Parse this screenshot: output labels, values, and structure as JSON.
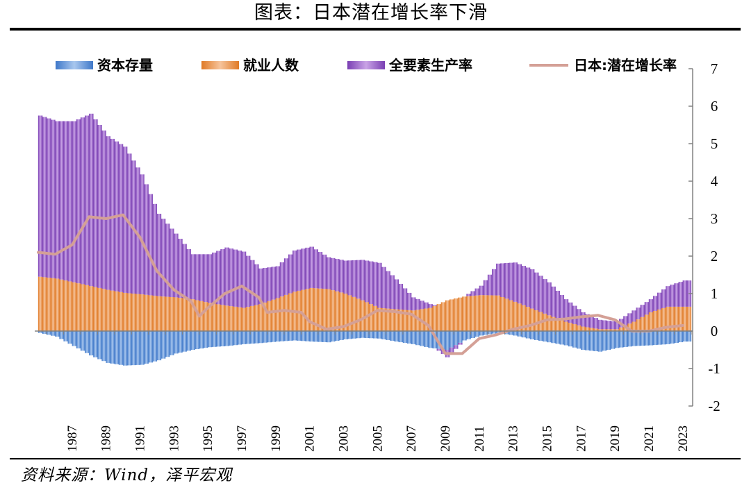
{
  "header": {
    "title": "图表：日本潜在增长率下滑"
  },
  "footer": {
    "source": "资料来源：Wind，泽平宏观"
  },
  "colors": {
    "capital": "#5b8fd6",
    "labor": "#ed8a3c",
    "tfp": "#9b5fc9",
    "potential": "#d4a096",
    "axis": "#808080"
  },
  "chart_data": {
    "type": "bar",
    "stacked": true,
    "title": "图表：日本潜在增长率下滑",
    "xlabel": "",
    "ylabel": "",
    "ylim": [
      -2,
      7
    ],
    "yticks": [
      "7",
      "6",
      "5",
      "4",
      "3",
      "2",
      "1",
      "0",
      "-1",
      "-2"
    ],
    "y_axis_side": "right",
    "legend_position": "top",
    "x": [
      1985,
      1986,
      1987,
      1988,
      1989,
      1990,
      1991,
      1992,
      1993,
      1994,
      1995,
      1996,
      1997,
      1998,
      1999,
      2000,
      2001,
      2002,
      2003,
      2004,
      2005,
      2006,
      2007,
      2008,
      2009,
      2010,
      2011,
      2012,
      2013,
      2014,
      2015,
      2016,
      2017,
      2018,
      2019,
      2020,
      2021,
      2022,
      2023
    ],
    "quarters_per_year": 4,
    "start_quarter": 3,
    "x_tick_labels": [
      "1987",
      "1989",
      "1991",
      "1993",
      "1995",
      "1997",
      "1999",
      "2001",
      "2003",
      "2005",
      "2007",
      "2009",
      "2011",
      "2013",
      "2015",
      "2017",
      "2019",
      "2021",
      "2023"
    ],
    "x_tick_years": [
      1987,
      1989,
      1991,
      1993,
      1995,
      1997,
      1999,
      2001,
      2003,
      2005,
      2007,
      2009,
      2011,
      2013,
      2015,
      2017,
      2019,
      2021,
      2023
    ],
    "series": [
      {
        "name": "资本存量",
        "kind": "bar",
        "color": "#5b8fd6",
        "anchors": [
          [
            1985.5,
            -0.05
          ],
          [
            1986.5,
            -0.15
          ],
          [
            1987.5,
            -0.4
          ],
          [
            1988.5,
            -0.65
          ],
          [
            1989.5,
            -0.85
          ],
          [
            1990.5,
            -0.92
          ],
          [
            1991.5,
            -0.9
          ],
          [
            1992.5,
            -0.78
          ],
          [
            1993.5,
            -0.6
          ],
          [
            1994.5,
            -0.5
          ],
          [
            1995.5,
            -0.43
          ],
          [
            1996.5,
            -0.4
          ],
          [
            1997.5,
            -0.35
          ],
          [
            1998.5,
            -0.32
          ],
          [
            1999.5,
            -0.28
          ],
          [
            2000.5,
            -0.25
          ],
          [
            2001.5,
            -0.28
          ],
          [
            2002.5,
            -0.3
          ],
          [
            2003.5,
            -0.22
          ],
          [
            2004.5,
            -0.18
          ],
          [
            2005.5,
            -0.2
          ],
          [
            2006.5,
            -0.28
          ],
          [
            2007.5,
            -0.35
          ],
          [
            2008.5,
            -0.45
          ],
          [
            2009.5,
            -0.5
          ],
          [
            2010.5,
            -0.25
          ],
          [
            2011.5,
            -0.12
          ],
          [
            2012.5,
            -0.05
          ],
          [
            2013.5,
            -0.12
          ],
          [
            2014.5,
            -0.22
          ],
          [
            2015.5,
            -0.3
          ],
          [
            2016.5,
            -0.38
          ],
          [
            2017.5,
            -0.5
          ],
          [
            2018.5,
            -0.55
          ],
          [
            2019.5,
            -0.45
          ],
          [
            2020.5,
            -0.4
          ],
          [
            2021.5,
            -0.38
          ],
          [
            2022.5,
            -0.35
          ],
          [
            2023.5,
            -0.28
          ]
        ]
      },
      {
        "name": "就业人数",
        "kind": "bar",
        "color": "#ed8a3c",
        "anchors": [
          [
            1985.5,
            1.45
          ],
          [
            1986.5,
            1.4
          ],
          [
            1987.5,
            1.3
          ],
          [
            1988.5,
            1.2
          ],
          [
            1989.5,
            1.1
          ],
          [
            1990.5,
            1.02
          ],
          [
            1991.5,
            0.98
          ],
          [
            1992.5,
            0.93
          ],
          [
            1993.5,
            0.9
          ],
          [
            1994.5,
            0.85
          ],
          [
            1995.5,
            0.75
          ],
          [
            1996.5,
            0.68
          ],
          [
            1997.5,
            0.62
          ],
          [
            1998.5,
            0.72
          ],
          [
            1999.5,
            0.88
          ],
          [
            2000.5,
            1.05
          ],
          [
            2001.5,
            1.15
          ],
          [
            2002.5,
            1.12
          ],
          [
            2003.5,
            1.0
          ],
          [
            2004.5,
            0.82
          ],
          [
            2005.5,
            0.62
          ],
          [
            2006.5,
            0.58
          ],
          [
            2007.5,
            0.55
          ],
          [
            2008.5,
            0.62
          ],
          [
            2009.5,
            0.82
          ],
          [
            2010.5,
            0.92
          ],
          [
            2011.5,
            0.96
          ],
          [
            2012.5,
            0.95
          ],
          [
            2013.5,
            0.78
          ],
          [
            2014.5,
            0.6
          ],
          [
            2015.5,
            0.42
          ],
          [
            2016.5,
            0.25
          ],
          [
            2017.5,
            0.12
          ],
          [
            2018.5,
            0.05
          ],
          [
            2019.5,
            0.05
          ],
          [
            2020.5,
            0.25
          ],
          [
            2021.5,
            0.5
          ],
          [
            2022.5,
            0.65
          ],
          [
            2023.5,
            0.65
          ]
        ]
      },
      {
        "name": "全要素生产率",
        "kind": "bar",
        "color": "#9b5fc9",
        "anchors": [
          [
            1985.5,
            4.3
          ],
          [
            1986.5,
            4.2
          ],
          [
            1987.5,
            4.3
          ],
          [
            1988.5,
            4.6
          ],
          [
            1989.5,
            4.1
          ],
          [
            1990.5,
            3.9
          ],
          [
            1991.5,
            3.2
          ],
          [
            1992.5,
            2.2
          ],
          [
            1993.5,
            1.7
          ],
          [
            1994.5,
            1.2
          ],
          [
            1995.5,
            1.3
          ],
          [
            1996.5,
            1.55
          ],
          [
            1997.5,
            1.5
          ],
          [
            1998.5,
            0.95
          ],
          [
            1999.5,
            0.85
          ],
          [
            2000.5,
            1.1
          ],
          [
            2001.5,
            1.1
          ],
          [
            2002.5,
            0.85
          ],
          [
            2003.5,
            0.88
          ],
          [
            2004.5,
            1.08
          ],
          [
            2005.5,
            1.2
          ],
          [
            2006.5,
            0.8
          ],
          [
            2007.5,
            0.35
          ],
          [
            2008.5,
            0.1
          ],
          [
            2009.5,
            -0.2
          ],
          [
            2010.5,
            0.0
          ],
          [
            2011.5,
            0.25
          ],
          [
            2012.5,
            0.85
          ],
          [
            2013.5,
            1.05
          ],
          [
            2014.5,
            1.05
          ],
          [
            2015.5,
            0.88
          ],
          [
            2016.5,
            0.6
          ],
          [
            2017.5,
            0.38
          ],
          [
            2018.5,
            0.25
          ],
          [
            2019.5,
            0.2
          ],
          [
            2020.5,
            0.3
          ],
          [
            2021.5,
            0.35
          ],
          [
            2022.5,
            0.55
          ],
          [
            2023.5,
            0.7
          ]
        ]
      },
      {
        "name": "日本:潜在增长率",
        "kind": "line",
        "color": "#d4a096",
        "anchors": [
          [
            1985.5,
            2.1
          ],
          [
            1986.5,
            2.05
          ],
          [
            1987.5,
            2.3
          ],
          [
            1988.5,
            3.05
          ],
          [
            1989.5,
            3.0
          ],
          [
            1990.5,
            3.1
          ],
          [
            1991.5,
            2.5
          ],
          [
            1992.5,
            1.6
          ],
          [
            1993.5,
            1.1
          ],
          [
            1994.5,
            0.8
          ],
          [
            1995.0,
            0.4
          ],
          [
            1995.5,
            0.62
          ],
          [
            1996.5,
            1.0
          ],
          [
            1997.5,
            1.2
          ],
          [
            1998.5,
            0.9
          ],
          [
            1999.0,
            0.5
          ],
          [
            2000.0,
            0.55
          ],
          [
            2001.0,
            0.5
          ],
          [
            2001.5,
            0.25
          ],
          [
            2002.5,
            0.05
          ],
          [
            2003.5,
            0.12
          ],
          [
            2004.5,
            0.3
          ],
          [
            2005.5,
            0.55
          ],
          [
            2006.5,
            0.52
          ],
          [
            2007.5,
            0.45
          ],
          [
            2008.5,
            0.15
          ],
          [
            2009.5,
            -0.6
          ],
          [
            2010.5,
            -0.6
          ],
          [
            2011.5,
            -0.2
          ],
          [
            2012.5,
            -0.1
          ],
          [
            2013.5,
            0.05
          ],
          [
            2014.5,
            0.15
          ],
          [
            2015.5,
            0.3
          ],
          [
            2016.5,
            0.32
          ],
          [
            2017.5,
            0.38
          ],
          [
            2018.5,
            0.42
          ],
          [
            2019.5,
            0.3
          ],
          [
            2020.5,
            0.0
          ],
          [
            2021.5,
            0.0
          ],
          [
            2022.5,
            0.1
          ],
          [
            2023.5,
            0.15
          ]
        ]
      }
    ]
  }
}
